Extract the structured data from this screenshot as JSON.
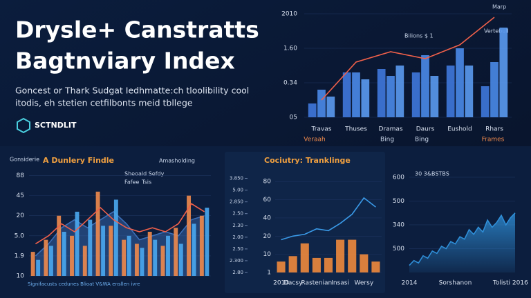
{
  "header": {
    "title_lines": [
      "Drysle+ Canstratts",
      "Bagtnviary Index"
    ],
    "subtitle_lines": [
      "Goncest or Thark Sudgat Iedhmatte:ch tloolibility cool",
      "itodis, eh stetien cetfilbonts meid tbllege"
    ],
    "brand": "SCTNDLIT"
  },
  "chart_data": [
    {
      "type": "bar",
      "annotations": [
        "Bilions $ 1",
        "Marp",
        "Vertebull"
      ],
      "categories": [
        "Travas",
        "Thuses",
        "Dramas",
        "Daurs",
        "Eushold",
        "Rhars"
      ],
      "sublabels": [
        "Veraah",
        "Bing",
        "Bing",
        "Frames"
      ],
      "ylim": [
        0,
        3.1
      ],
      "yticks": [
        {
          "value": 0,
          "label": "05"
        },
        {
          "value": 1,
          "label": "0.34"
        },
        {
          "value": 2,
          "label": "1.60"
        },
        {
          "value": 3,
          "label": "2010"
        }
      ],
      "series": [
        {
          "color": "#3f78dc",
          "values": [
            0.4,
            1.3,
            1.4,
            1.3,
            1.5,
            0.9
          ]
        },
        {
          "color": "#4a8ae8",
          "values": [
            0.8,
            1.3,
            1.2,
            1.8,
            2.0,
            1.6
          ]
        },
        {
          "color": "#5b9af0",
          "values": [
            0.6,
            1.1,
            1.5,
            1.2,
            1.5,
            2.6
          ]
        },
        {
          "type": "line",
          "color": "#f0604a",
          "values": [
            0.5,
            1.6,
            1.9,
            1.7,
            2.1,
            2.9
          ]
        }
      ]
    },
    {
      "type": "bar",
      "title": "A Dunlery Findle",
      "annotations": [
        "Gonsiderie",
        "Amasholding",
        "Sheoald Sefdy",
        "Fafee",
        "Tsis"
      ],
      "caption": "Signifacusts cedunes Blioat V&WA ensllen ivre",
      "categories": [
        null,
        null,
        null,
        null,
        null,
        null,
        null,
        null,
        null,
        null,
        null,
        null,
        null,
        null
      ],
      "ylim": [
        0,
        5.5
      ],
      "yticks": [
        {
          "value": 0,
          "label": "10"
        },
        {
          "value": 1,
          "label": "1.9"
        },
        {
          "value": 2,
          "label": "5.0"
        },
        {
          "value": 3,
          "label": "20"
        },
        {
          "value": 4,
          "label": "45"
        },
        {
          "value": 5,
          "label": "88"
        }
      ],
      "series": [
        {
          "type": "area",
          "color": "#3c6fb8",
          "values": [
            1.0,
            1.6,
            2.4,
            2.8,
            2.4,
            2.8,
            3.2,
            2.6,
            1.8,
            2.0,
            2.2,
            2.0,
            2.8,
            3.0
          ]
        },
        {
          "color": "#f08a4c",
          "values": [
            1.2,
            1.8,
            3.0,
            2.0,
            1.5,
            4.2,
            2.5,
            1.8,
            1.6,
            2.2,
            1.5,
            2.4,
            4.0,
            3.0
          ]
        },
        {
          "color": "#4aa8f0",
          "values": [
            0.8,
            1.5,
            2.2,
            3.2,
            2.8,
            2.5,
            3.8,
            2.0,
            1.4,
            1.8,
            2.0,
            1.6,
            2.6,
            3.4
          ]
        },
        {
          "type": "line",
          "color": "#f0604a",
          "values": [
            1.6,
            2.0,
            2.6,
            2.2,
            2.8,
            3.4,
            2.8,
            2.4,
            2.2,
            2.4,
            2.2,
            2.6,
            3.6,
            3.2
          ]
        }
      ]
    },
    {
      "type": "bar",
      "title": "Cociutry: Tranklinge",
      "categories": [
        "2010",
        "Dacsy",
        null,
        "Rastenian",
        null,
        "Insasi",
        null,
        "Wersy",
        null
      ],
      "ylim": [
        0,
        5.5
      ],
      "yticks": [
        {
          "value": 0,
          "label": "1"
        },
        {
          "value": 1,
          "label": "10"
        },
        {
          "value": 2,
          "label": "20"
        },
        {
          "value": 3,
          "label": "40"
        },
        {
          "value": 4,
          "label": "60"
        },
        {
          "value": 5,
          "label": "80"
        }
      ],
      "y2lim": [
        0,
        8.5
      ],
      "y2ticks": [
        {
          "value": 0,
          "label": "2.80"
        },
        {
          "value": 1,
          "label": "2.300"
        },
        {
          "value": 2,
          "label": "2.50"
        },
        {
          "value": 3,
          "label": "2.00"
        },
        {
          "value": 4,
          "label": "2.30"
        },
        {
          "value": 5,
          "label": "2.50"
        },
        {
          "value": 6,
          "label": "2.850"
        },
        {
          "value": 7,
          "label": "5.00"
        },
        {
          "value": 8,
          "label": "3.850"
        }
      ],
      "series": [
        {
          "color": "#f08a3c",
          "values": [
            0.6,
            0.9,
            1.6,
            0.8,
            0.8,
            1.8,
            1.8,
            1.0,
            0.6
          ]
        },
        {
          "type": "line",
          "color": "#3a9ae8",
          "values": [
            1.8,
            2.0,
            2.1,
            2.4,
            2.3,
            2.7,
            3.2,
            4.1,
            3.6
          ]
        }
      ]
    },
    {
      "type": "area",
      "annotations": [
        "30 3&BSTBS"
      ],
      "categories": [
        "2014",
        null,
        null,
        null,
        null,
        null,
        null,
        null,
        null,
        null,
        "Sorshanon",
        null,
        null,
        null,
        null,
        null,
        null,
        null,
        null,
        null,
        null,
        null,
        "Tolisti 2016",
        null
      ],
      "ylim": [
        0,
        4.2
      ],
      "yticks": [
        {
          "value": 1,
          "label": "500"
        },
        {
          "value": 2,
          "label": "340"
        },
        {
          "value": 3,
          "label": "500"
        },
        {
          "value": 4,
          "label": "600"
        }
      ],
      "series": [
        {
          "color": "#2f8fd8",
          "values": [
            0.3,
            0.5,
            0.4,
            0.7,
            0.6,
            0.9,
            0.8,
            1.1,
            1.0,
            1.3,
            1.2,
            1.5,
            1.4,
            1.8,
            1.6,
            1.9,
            1.7,
            2.2,
            1.9,
            2.1,
            2.4,
            2.0,
            2.3,
            2.5
          ]
        }
      ]
    }
  ]
}
